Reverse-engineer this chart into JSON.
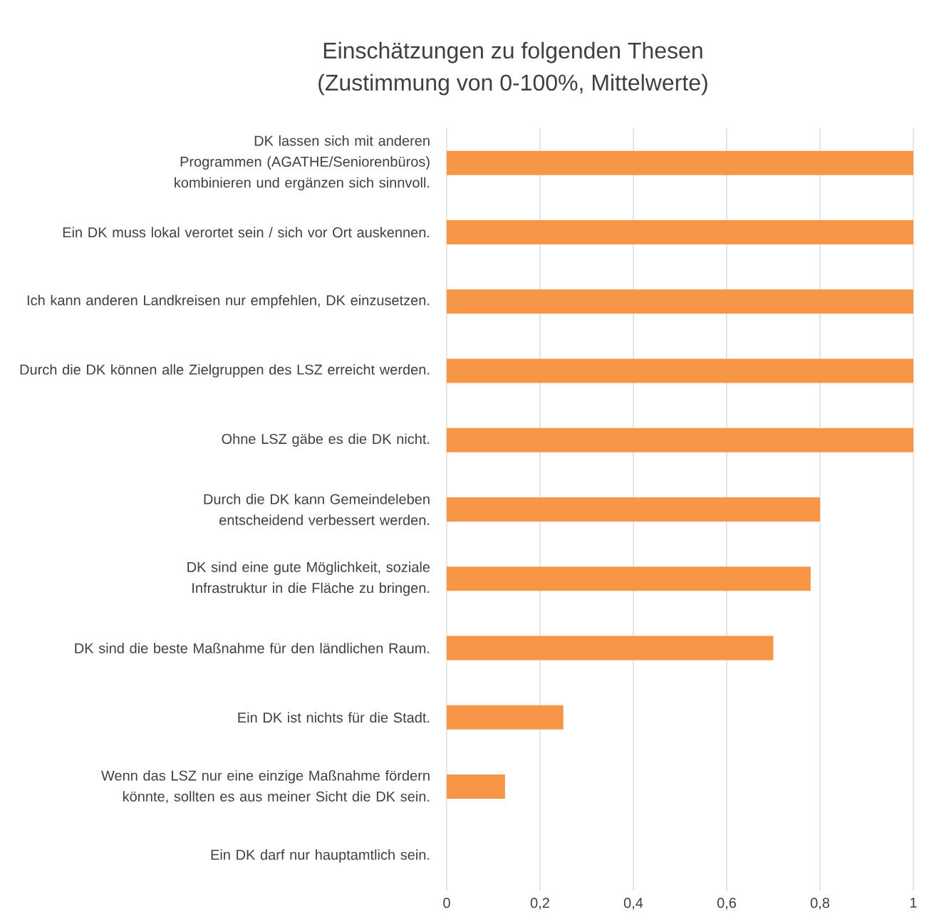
{
  "chart_data": {
    "type": "bar",
    "orientation": "horizontal",
    "title": "Einschätzungen zu folgenden Thesen",
    "subtitle": "(Zustimmung von 0-100%, Mittelwerte)",
    "categories": [
      "DK lassen sich mit anderen Programmen (AGATHE/Seniorenbüros) kombinieren und ergänzen sich sinnvoll.",
      "Ein DK muss lokal verortet sein / sich vor Ort auskennen.",
      "Ich kann anderen Landkreisen nur empfehlen, DK einzusetzen.",
      "Durch die DK können alle Zielgruppen des LSZ erreicht werden.",
      "Ohne LSZ gäbe es die DK nicht.",
      "Durch die DK kann Gemeindeleben entscheidend verbessert werden.",
      "DK sind eine gute Möglichkeit, soziale Infrastruktur in die Fläche zu bringen.",
      "DK sind die beste Maßnahme für den ländlichen Raum.",
      "Ein DK ist nichts für die Stadt.",
      "Wenn das LSZ nur eine einzige Maßnahme fördern könnte, sollten es aus meiner Sicht die DK sein.",
      "Ein DK darf nur hauptamtlich sein."
    ],
    "values": [
      1,
      1,
      1,
      1,
      1,
      0.8,
      0.78,
      0.7,
      0.25,
      0.125,
      0
    ],
    "color": "#f79646",
    "xlim": [
      0,
      1
    ],
    "xticks": [
      0,
      {
        "value": 0.2,
        "label": "0,2"
      },
      {
        "value": 0.4,
        "label": "0,4"
      },
      {
        "value": 0.6,
        "label": "0,6"
      },
      {
        "value": 0.8,
        "label": "0,8"
      },
      1
    ],
    "grid": "x"
  }
}
